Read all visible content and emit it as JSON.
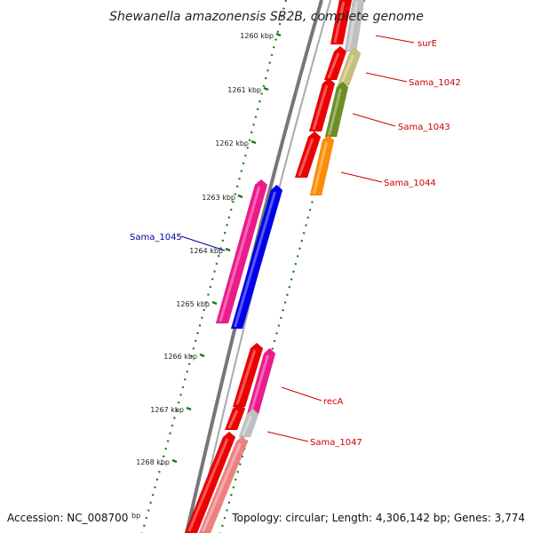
{
  "title": "Shewanella amazonensis SB2B, complete genome",
  "footer": {
    "accession": "Accession: NC_008700",
    "topology": "Topology: circular; Length: 4,306,142 bp; Genes: 3,774",
    "accession_tail": "bp"
  },
  "ticks": [
    {
      "label": "1260 kbp"
    },
    {
      "label": "1261 kbp"
    },
    {
      "label": "1262 kbp"
    },
    {
      "label": "1263 kbp"
    },
    {
      "label": "1264 kbp"
    },
    {
      "label": "1265 kbp"
    },
    {
      "label": "1266 kbp"
    },
    {
      "label": "1267 kbp"
    },
    {
      "label": "1268 kbp"
    }
  ],
  "gene_labels": [
    {
      "name": "surE",
      "color": "#cc0000"
    },
    {
      "name": "Sama_1042",
      "color": "#cc0000"
    },
    {
      "name": "Sama_1043",
      "color": "#cc0000"
    },
    {
      "name": "Sama_1044",
      "color": "#cc0000"
    },
    {
      "name": "Sama_1045",
      "color": "#000099"
    },
    {
      "name": "recA",
      "color": "#cc0000"
    },
    {
      "name": "Sama_1047",
      "color": "#cc0000"
    }
  ],
  "colors": {
    "backbone": "#777777",
    "tick_green": "#1a7a1a",
    "red": "#ee0000",
    "pink": "#ee1a8c",
    "blue": "#0000ee",
    "olive": "#6b8e23",
    "khaki": "#c8bf78",
    "orange": "#ff8c00",
    "gray": "#c0c0c0",
    "salmon": "#f08080"
  }
}
